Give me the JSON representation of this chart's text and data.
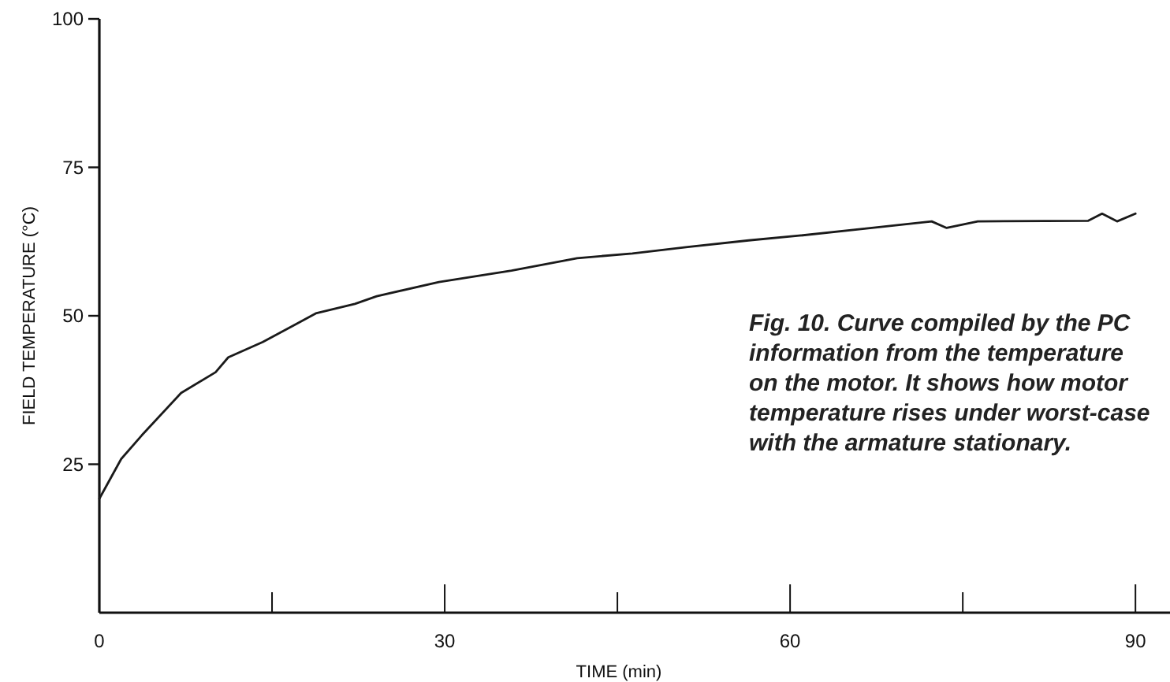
{
  "chart_data": {
    "type": "line",
    "xlabel": "TIME (min)",
    "ylabel": "FIELD TEMPERATURE (°C)",
    "x": [
      0,
      1.9,
      3.7,
      7.1,
      10.1,
      11.2,
      14.2,
      17,
      18.8,
      22.2,
      24.1,
      29.5,
      35.8,
      41.5,
      46.3,
      51.1,
      56.4,
      60.8,
      67.1,
      72.3,
      73.6,
      76.3,
      85.9,
      87.1,
      88.4,
      90
    ],
    "series": [
      {
        "color": "#1a1a1a",
        "values": [
          19.2,
          25.9,
          29.9,
          37,
          40.5,
          43,
          45.6,
          48.5,
          50.4,
          52,
          53.3,
          55.7,
          57.6,
          59.7,
          60.5,
          61.6,
          62.7,
          63.5,
          64.8,
          65.9,
          64.8,
          65.9,
          66,
          67.2,
          65.9,
          67.2
        ]
      }
    ],
    "xlim": [
      0,
      93
    ],
    "ylim": [
      0,
      100
    ],
    "xticks": [
      0,
      {
        "value": 15,
        "label": null
      },
      30,
      {
        "value": 45,
        "label": null
      },
      60,
      {
        "value": 75,
        "label": null
      },
      90
    ],
    "yticks": [
      25,
      50,
      75,
      100
    ],
    "annotations": [
      "Fig. 10. Curve compiled by the PC information from the temperature on the motor. It shows how motor temperature rises under worst-case with the armature stationary."
    ]
  }
}
